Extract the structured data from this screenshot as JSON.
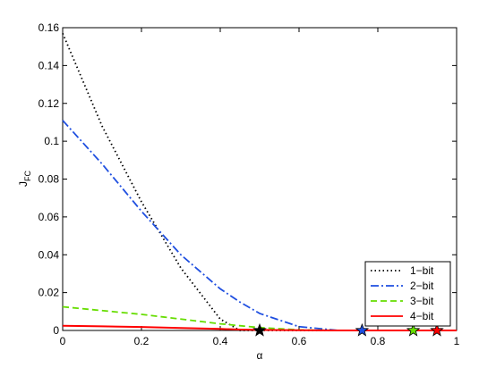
{
  "chart_data": {
    "type": "line",
    "xlabel": "α",
    "ylabel": {
      "main": "J",
      "sub": "FC"
    },
    "x": [
      0,
      0.1,
      0.2,
      0.3,
      0.4,
      0.45,
      0.5,
      0.6,
      0.7,
      0.8,
      0.9,
      1
    ],
    "series": [
      {
        "name": "1−bit",
        "color": "#000000",
        "style": "dotted",
        "values": [
          0.157,
          0.108,
          0.068,
          0.033,
          0.006,
          0,
          0,
          0,
          0,
          0,
          0,
          0
        ],
        "star": {
          "x": 0.5,
          "y": 0
        }
      },
      {
        "name": "2−bit",
        "color": "#1f4fe0",
        "style": "dashdot",
        "values": [
          0.111,
          0.088,
          0.063,
          0.04,
          0.022,
          0.015,
          0.009,
          0.002,
          0,
          0,
          0,
          0
        ],
        "star": {
          "x": 0.76,
          "y": 0
        }
      },
      {
        "name": "3−bit",
        "color": "#66dd00",
        "style": "dashed",
        "values": [
          0.0125,
          0.0105,
          0.0085,
          0.006,
          0.0035,
          0.0025,
          0.0015,
          0.0003,
          0,
          0,
          0,
          0
        ],
        "star": {
          "x": 0.89,
          "y": 0
        }
      },
      {
        "name": "4−bit",
        "color": "#ff0000",
        "style": "solid",
        "values": [
          0.0025,
          0.0022,
          0.0018,
          0.0013,
          0.0008,
          0.0005,
          0.0003,
          0.0001,
          0,
          0,
          0,
          0
        ],
        "star": {
          "x": 0.95,
          "y": 0
        }
      }
    ],
    "xlim": [
      0,
      1
    ],
    "xticks": [
      0,
      0.2,
      0.4,
      0.6,
      0.8,
      1
    ],
    "ylim": [
      0,
      0.16
    ],
    "yticks": [
      0,
      0.02,
      0.04,
      0.06,
      0.08,
      0.1,
      0.12,
      0.14,
      0.16
    ],
    "legend": "southeast",
    "grid": false
  }
}
